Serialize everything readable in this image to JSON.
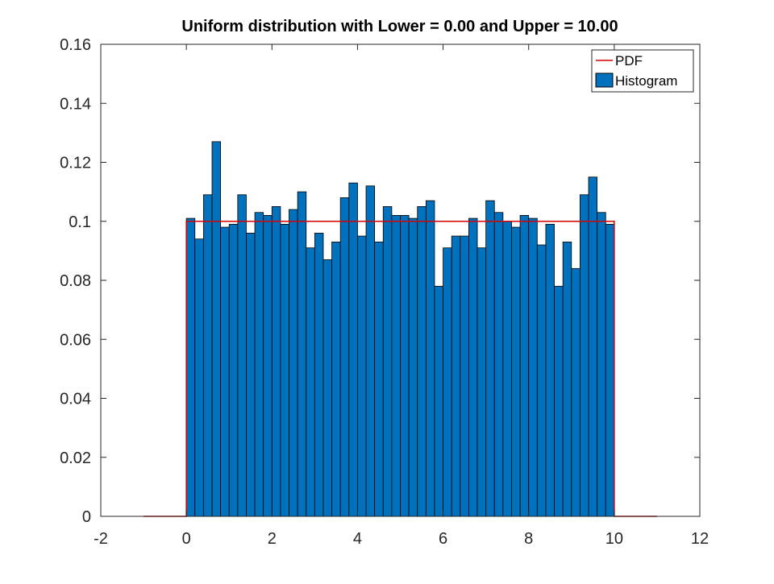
{
  "chart_data": {
    "type": "bar",
    "title": "Uniform distribution with Lower = 0.00 and Upper = 10.00",
    "xlabel": "",
    "ylabel": "",
    "xlim": [
      -2,
      12
    ],
    "ylim": [
      0,
      0.16
    ],
    "x_ticks": [
      -2,
      0,
      2,
      4,
      6,
      8,
      10,
      12
    ],
    "x_tick_labels": [
      "-2",
      "0",
      "2",
      "4",
      "6",
      "8",
      "10",
      "12"
    ],
    "y_ticks": [
      0,
      0.02,
      0.04,
      0.06,
      0.08,
      0.1,
      0.12,
      0.14,
      0.16
    ],
    "y_tick_labels": [
      "0",
      "0.02",
      "0.04",
      "0.06",
      "0.08",
      "0.1",
      "0.12",
      "0.14",
      "0.16"
    ],
    "grid": false,
    "legend": {
      "position": "top-right",
      "entries": [
        {
          "label": "PDF",
          "type": "line",
          "color": "#d40000"
        },
        {
          "label": "Histogram",
          "type": "patch",
          "color": "#0072bd"
        }
      ]
    },
    "series": [
      {
        "name": "Histogram",
        "kind": "histogram",
        "bin_edges_start": 0,
        "bin_width": 0.2,
        "values": [
          0.101,
          0.094,
          0.109,
          0.127,
          0.098,
          0.099,
          0.109,
          0.096,
          0.103,
          0.102,
          0.105,
          0.099,
          0.104,
          0.11,
          0.091,
          0.096,
          0.087,
          0.093,
          0.108,
          0.113,
          0.095,
          0.112,
          0.093,
          0.105,
          0.102,
          0.102,
          0.101,
          0.105,
          0.107,
          0.078,
          0.091,
          0.095,
          0.095,
          0.101,
          0.091,
          0.107,
          0.103,
          0.1,
          0.098,
          0.102,
          0.101,
          0.092,
          0.099,
          0.078,
          0.093,
          0.084,
          0.109,
          0.115,
          0.103,
          0.099
        ],
        "color": "#0072bd",
        "edge_color": "#000000"
      },
      {
        "name": "PDF",
        "kind": "line",
        "x": [
          -1,
          0,
          0,
          10,
          10,
          11
        ],
        "y": [
          0,
          0,
          0.1,
          0.1,
          0,
          0
        ],
        "color": "#d40000"
      }
    ]
  }
}
